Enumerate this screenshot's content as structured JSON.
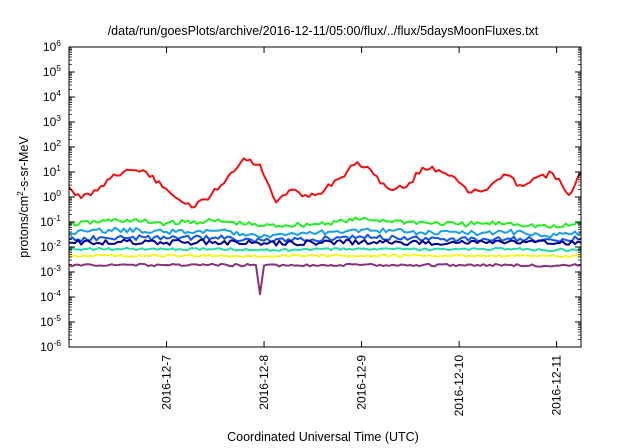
{
  "chart_data": {
    "type": "line",
    "title": "/data/run/goesPlots/archive/2016-12-11/05:00/flux/../flux/5daysMoonFluxes.txt",
    "xlabel": "Coordinated Universal Time (UTC)",
    "ylabel": {
      "prefix": "protons/cm",
      "sup": "2",
      "suffix": "-s-sr-MeV"
    },
    "yscale": "log",
    "ylim": [
      1e-06,
      1000000.0
    ],
    "xlim": [
      "2016-12-06 00:00",
      "2016-12-11 06:00"
    ],
    "y_ticks": [
      {
        "base": "10",
        "exp": "-6"
      },
      {
        "base": "10",
        "exp": "-5"
      },
      {
        "base": "10",
        "exp": "-4"
      },
      {
        "base": "10",
        "exp": "-3"
      },
      {
        "base": "10",
        "exp": "-2"
      },
      {
        "base": "10",
        "exp": "-1"
      },
      {
        "base": "10",
        "exp": "0"
      },
      {
        "base": "10",
        "exp": "1"
      },
      {
        "base": "10",
        "exp": "2"
      },
      {
        "base": "10",
        "exp": "3"
      },
      {
        "base": "10",
        "exp": "4"
      },
      {
        "base": "10",
        "exp": "5"
      },
      {
        "base": "10",
        "exp": "6"
      }
    ],
    "x_ticks": [
      "2016-12-7",
      "2016-12-8",
      "2016-12-9",
      "2016-12-10",
      "2016-12-11"
    ],
    "grid": false,
    "series": [
      {
        "color": "#ee1111",
        "x": [
          "2016-12-06 00:00",
          "2016-12-06 03:00",
          "2016-12-06 07:00",
          "2016-12-06 11:00",
          "2016-12-06 15:00",
          "2016-12-06 19:00",
          "2016-12-06 23:00",
          "2016-12-07 03:00",
          "2016-12-07 07:00",
          "2016-12-07 11:00",
          "2016-12-07 15:00",
          "2016-12-07 19:00",
          "2016-12-07 23:00",
          "2016-12-08 03:00",
          "2016-12-08 07:00",
          "2016-12-08 11:00",
          "2016-12-08 15:00",
          "2016-12-08 19:00",
          "2016-12-08 23:00",
          "2016-12-09 03:00",
          "2016-12-09 07:00",
          "2016-12-09 11:00",
          "2016-12-09 15:00",
          "2016-12-09 19:00",
          "2016-12-09 23:00",
          "2016-12-10 03:00",
          "2016-12-10 07:00",
          "2016-12-10 11:00",
          "2016-12-10 15:00",
          "2016-12-10 19:00",
          "2016-12-10 23:00",
          "2016-12-11 03:00",
          "2016-12-11 06:00"
        ],
        "y": [
          2.5,
          0.9,
          1.8,
          8.0,
          12.0,
          10.0,
          2.5,
          0.8,
          0.4,
          1.2,
          6.0,
          35.0,
          20.0,
          0.6,
          2.0,
          1.0,
          2.0,
          6.0,
          25.0,
          8.0,
          2.0,
          2.5,
          15.0,
          12.0,
          6.0,
          1.5,
          2.0,
          8.0,
          3.0,
          6.0,
          9.0,
          1.2,
          10.0
        ]
      },
      {
        "color": "#22ee22",
        "x": [
          "2016-12-06 00:00",
          "2016-12-06 12:00",
          "2016-12-07 00:00",
          "2016-12-07 12:00",
          "2016-12-08 00:00",
          "2016-12-08 12:00",
          "2016-12-09 00:00",
          "2016-12-09 12:00",
          "2016-12-10 00:00",
          "2016-12-10 12:00",
          "2016-12-11 00:00",
          "2016-12-11 06:00"
        ],
        "y": [
          0.08,
          0.12,
          0.09,
          0.11,
          0.07,
          0.08,
          0.13,
          0.1,
          0.08,
          0.09,
          0.06,
          0.09
        ]
      },
      {
        "color": "#1aa0e8",
        "x": [
          "2016-12-06 00:00",
          "2016-12-06 12:00",
          "2016-12-07 00:00",
          "2016-12-07 12:00",
          "2016-12-08 00:00",
          "2016-12-08 12:00",
          "2016-12-09 00:00",
          "2016-12-09 12:00",
          "2016-12-10 00:00",
          "2016-12-10 12:00",
          "2016-12-11 00:00",
          "2016-12-11 06:00"
        ],
        "y": [
          0.035,
          0.05,
          0.04,
          0.045,
          0.03,
          0.035,
          0.05,
          0.04,
          0.035,
          0.04,
          0.03,
          0.04
        ]
      },
      {
        "color": "#1155ee",
        "x": [
          "2016-12-06 00:00",
          "2016-12-06 12:00",
          "2016-12-07 00:00",
          "2016-12-07 12:00",
          "2016-12-08 00:00",
          "2016-12-08 12:00",
          "2016-12-09 00:00",
          "2016-12-09 12:00",
          "2016-12-10 00:00",
          "2016-12-10 12:00",
          "2016-12-11 00:00",
          "2016-12-11 06:00"
        ],
        "y": [
          0.02,
          0.025,
          0.022,
          0.024,
          0.018,
          0.02,
          0.026,
          0.022,
          0.02,
          0.022,
          0.018,
          0.022
        ]
      },
      {
        "color": "#000099",
        "x": [
          "2016-12-06 00:00",
          "2016-12-06 12:00",
          "2016-12-07 00:00",
          "2016-12-07 12:00",
          "2016-12-08 00:00",
          "2016-12-08 12:00",
          "2016-12-09 00:00",
          "2016-12-09 12:00",
          "2016-12-10 00:00",
          "2016-12-10 12:00",
          "2016-12-11 00:00",
          "2016-12-11 06:00"
        ],
        "y": [
          0.015,
          0.016,
          0.015,
          0.016,
          0.014,
          0.015,
          0.016,
          0.015,
          0.015,
          0.016,
          0.014,
          0.015
        ]
      },
      {
        "color": "#22ddaa",
        "x": [
          "2016-12-06 00:00",
          "2016-12-06 12:00",
          "2016-12-07 00:00",
          "2016-12-07 12:00",
          "2016-12-08 00:00",
          "2016-12-08 12:00",
          "2016-12-09 00:00",
          "2016-12-09 12:00",
          "2016-12-10 00:00",
          "2016-12-10 12:00",
          "2016-12-11 00:00",
          "2016-12-11 06:00"
        ],
        "y": [
          0.008,
          0.0085,
          0.008,
          0.0085,
          0.0075,
          0.008,
          0.0085,
          0.008,
          0.008,
          0.0085,
          0.0075,
          0.008
        ]
      },
      {
        "color": "#f5f522",
        "x": [
          "2016-12-06 00:00",
          "2016-12-06 12:00",
          "2016-12-07 00:00",
          "2016-12-07 12:00",
          "2016-12-08 00:00",
          "2016-12-08 12:00",
          "2016-12-09 00:00",
          "2016-12-09 12:00",
          "2016-12-10 00:00",
          "2016-12-10 12:00",
          "2016-12-11 00:00",
          "2016-12-11 06:00"
        ],
        "y": [
          0.0045,
          0.0045,
          0.0045,
          0.0045,
          0.0042,
          0.0045,
          0.0045,
          0.0045,
          0.0045,
          0.0045,
          0.0042,
          0.0045
        ]
      },
      {
        "color": "#883377",
        "x": [
          "2016-12-06 00:00",
          "2016-12-06 12:00",
          "2016-12-07 00:00",
          "2016-12-07 12:00",
          "2016-12-07 22:00",
          "2016-12-07 23:00",
          "2016-12-08 00:00",
          "2016-12-08 12:00",
          "2016-12-09 00:00",
          "2016-12-09 12:00",
          "2016-12-10 00:00",
          "2016-12-10 12:00",
          "2016-12-11 00:00",
          "2016-12-11 06:00"
        ],
        "y": [
          0.0019,
          0.0019,
          0.0019,
          0.0019,
          0.0019,
          0.00013,
          0.0018,
          0.0019,
          0.0019,
          0.0019,
          0.0019,
          0.0019,
          0.0018,
          0.0019
        ]
      }
    ]
  }
}
